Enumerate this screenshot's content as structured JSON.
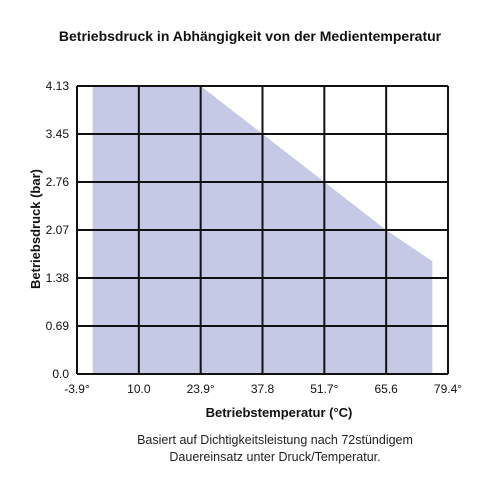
{
  "chart_data": {
    "type": "area",
    "title": "Betriebsdruck in Abhängigkeit von der Medientemperatur",
    "xlabel": "Betriebstemperatur (°C)",
    "ylabel": "Betriebsdruck (bar)",
    "x_tick_labels": [
      "-3.9°",
      "10.0",
      "23.9°",
      "37.8",
      "51.7°",
      "65.6",
      "79.4°"
    ],
    "x_ticks": [
      -3.9,
      10.0,
      23.9,
      37.8,
      51.7,
      65.6,
      79.4
    ],
    "y_tick_labels": [
      "0.0",
      "0.69",
      "1.38",
      "2.07",
      "2.76",
      "3.45",
      "4.13"
    ],
    "y_ticks": [
      0.0,
      0.69,
      1.38,
      2.07,
      2.76,
      3.45,
      4.13
    ],
    "xlim": [
      -3.9,
      79.4
    ],
    "ylim": [
      0.0,
      4.13
    ],
    "grid": true,
    "series": [
      {
        "x": [
          -0.4,
          -0.4,
          23.9,
          37.8,
          51.7,
          65.6,
          75.9,
          75.9
        ],
        "y": [
          0.0,
          4.13,
          4.13,
          3.45,
          2.76,
          2.07,
          1.62,
          0.0
        ],
        "color": "#c5c9e6"
      }
    ]
  },
  "note": {
    "line1": "Basiert auf Dichtigkeitsleistung nach 72stündigem",
    "line2": "Dauereinsatz unter Druck/Temperatur."
  }
}
